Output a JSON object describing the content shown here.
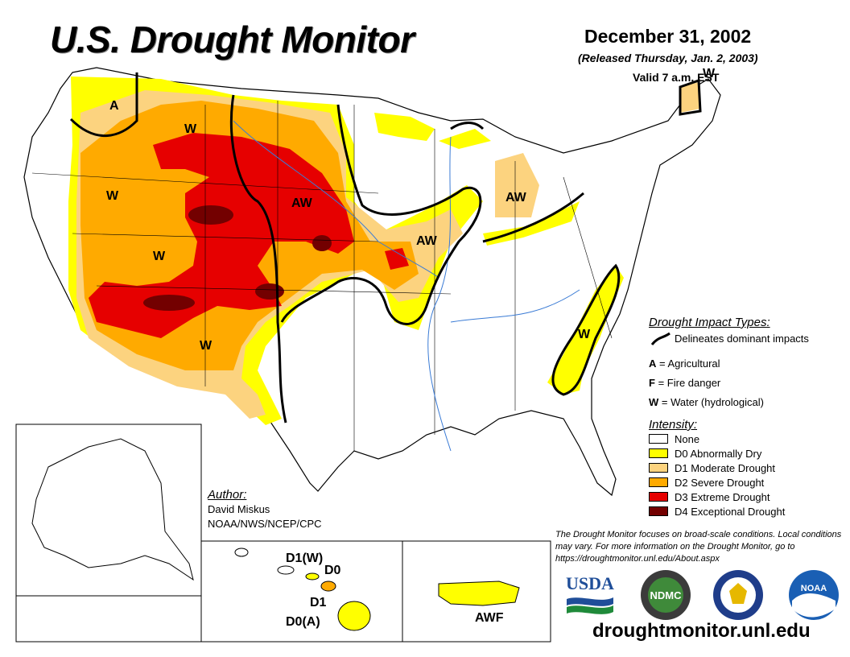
{
  "header": {
    "title": "U.S. Drought Monitor",
    "date": "December 31, 2002",
    "released": "(Released Thursday, Jan. 2, 2003)",
    "valid": "Valid 7 a.m. EST"
  },
  "map_labels": {
    "nw_a": "A",
    "w_label_1": "W",
    "w_label_2": "W",
    "w_label_3": "W",
    "w_label_4": "W",
    "aw_plains": "AW",
    "aw_iowa": "AW",
    "aw_michigan": "AW",
    "w_maine": "W",
    "w_carolinas": "W"
  },
  "inset_labels": {
    "hawaii_d1w": "D1(W)",
    "hawaii_d0": "D0",
    "hawaii_d1": "D1",
    "hawaii_d0a": "D0(A)",
    "pr_awf": "AWF"
  },
  "legend": {
    "impact_title": "Drought Impact Types:",
    "impact_line_desc": "Delineates dominant impacts",
    "impacts": [
      {
        "key": "A",
        "desc": "= Agricultural"
      },
      {
        "key": "F",
        "desc": "= Fire danger"
      },
      {
        "key": "W",
        "desc": "= Water (hydrological)"
      }
    ],
    "intensity_title": "Intensity:",
    "intensity": [
      {
        "label": "None",
        "color": "#ffffff"
      },
      {
        "label": "D0 Abnormally Dry",
        "color": "#ffff00"
      },
      {
        "label": "D1 Moderate Drought",
        "color": "#fcd37f"
      },
      {
        "label": "D2 Severe Drought",
        "color": "#ffaa00"
      },
      {
        "label": "D3 Extreme Drought",
        "color": "#e60000"
      },
      {
        "label": "D4 Exceptional Drought",
        "color": "#730000"
      }
    ]
  },
  "author": {
    "heading": "Author:",
    "name": "David Miskus",
    "org": "NOAA/NWS/NCEP/CPC"
  },
  "note": "The Drought Monitor focuses on broad-scale conditions. Local conditions may vary. For more information on the Drought Monitor, go to https://droughtmonitor.unl.edu/About.aspx",
  "logos": {
    "usda": "USDA",
    "ndmc": "NDMC",
    "noaa": "NOAA"
  },
  "footer_url": "droughtmonitor.unl.edu",
  "colors": {
    "d0": "#ffff00",
    "d1": "#fcd37f",
    "d2": "#ffaa00",
    "d3": "#e60000",
    "d4": "#730000",
    "water": "#3a7bd5"
  }
}
